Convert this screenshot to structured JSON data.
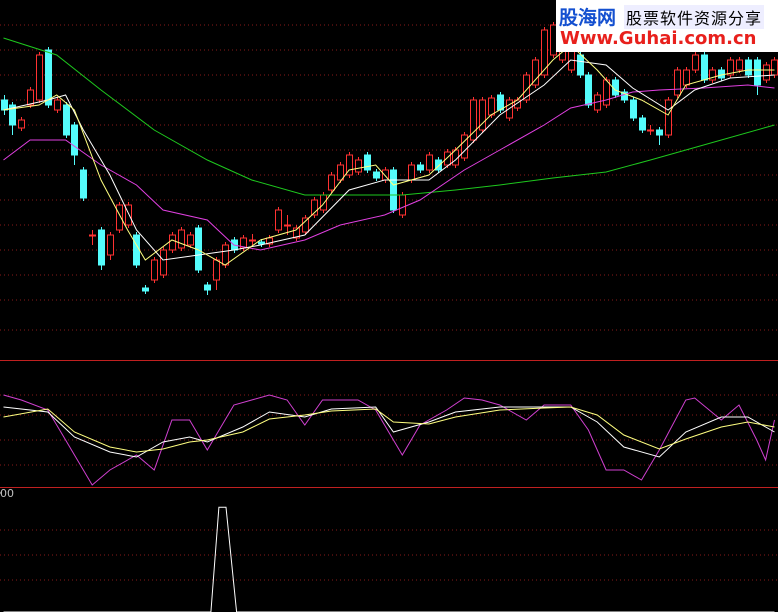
{
  "chart_data": [
    {
      "type": "candlestick",
      "xlim": [
        -0.4,
        87.4
      ],
      "ylim": [
        0,
        360
      ],
      "up_color": "#ff3232",
      "down_color": "#54fcfc",
      "candles": [
        [
          260,
          265,
          245,
          250
        ],
        [
          255,
          258,
          225,
          235
        ],
        [
          232,
          243,
          229,
          240
        ],
        [
          255,
          273,
          252,
          270
        ],
        [
          260,
          308,
          257,
          305
        ],
        [
          310,
          313,
          252,
          255
        ],
        [
          250,
          263,
          247,
          260
        ],
        [
          255,
          258,
          222,
          225
        ],
        [
          235,
          238,
          195,
          205
        ],
        [
          190,
          193,
          159,
          162
        ],
        [
          125,
          130,
          115,
          125
        ],
        [
          130,
          133,
          90,
          95
        ],
        [
          105,
          128,
          100,
          125
        ],
        [
          130,
          158,
          127,
          155
        ],
        [
          135,
          158,
          132,
          155
        ],
        [
          125,
          128,
          92,
          95
        ],
        [
          72,
          75,
          66,
          69
        ],
        [
          80,
          103,
          77,
          100
        ],
        [
          85,
          113,
          82,
          110
        ],
        [
          110,
          128,
          107,
          125
        ],
        [
          112,
          133,
          109,
          130
        ],
        [
          115,
          128,
          112,
          125
        ],
        [
          132,
          135,
          87,
          90
        ],
        [
          75,
          78,
          65,
          70
        ],
        [
          80,
          103,
          70,
          100
        ],
        [
          95,
          118,
          92,
          115
        ],
        [
          120,
          123,
          107,
          110
        ],
        [
          112,
          125,
          109,
          122
        ],
        [
          120,
          126,
          114,
          120
        ],
        [
          118,
          121,
          113,
          116
        ],
        [
          116,
          125,
          113,
          122
        ],
        [
          130,
          153,
          127,
          150
        ],
        [
          135,
          145,
          125,
          135
        ],
        [
          122,
          135,
          119,
          132
        ],
        [
          128,
          145,
          125,
          142
        ],
        [
          145,
          163,
          142,
          160
        ],
        [
          150,
          168,
          147,
          165
        ],
        [
          170,
          188,
          167,
          185
        ],
        [
          180,
          198,
          177,
          195
        ],
        [
          185,
          208,
          182,
          205
        ],
        [
          188,
          203,
          185,
          200
        ],
        [
          205,
          208,
          187,
          190
        ],
        [
          188,
          191,
          179,
          182
        ],
        [
          180,
          193,
          177,
          190
        ],
        [
          190,
          193,
          147,
          150
        ],
        [
          145,
          168,
          142,
          165
        ],
        [
          180,
          198,
          177,
          195
        ],
        [
          195,
          198,
          187,
          190
        ],
        [
          190,
          208,
          187,
          205
        ],
        [
          200,
          203,
          187,
          190
        ],
        [
          195,
          211,
          192,
          208
        ],
        [
          195,
          213,
          192,
          210
        ],
        [
          202,
          228,
          199,
          225
        ],
        [
          220,
          263,
          217,
          260
        ],
        [
          230,
          263,
          227,
          260
        ],
        [
          245,
          265,
          242,
          262
        ],
        [
          265,
          268,
          247,
          250
        ],
        [
          242,
          263,
          239,
          260
        ],
        [
          252,
          263,
          249,
          260
        ],
        [
          260,
          288,
          257,
          285
        ],
        [
          275,
          303,
          272,
          300
        ],
        [
          285,
          333,
          282,
          330
        ],
        [
          305,
          338,
          302,
          335
        ],
        [
          300,
          328,
          297,
          325
        ],
        [
          290,
          323,
          287,
          320
        ],
        [
          305,
          308,
          282,
          285
        ],
        [
          285,
          288,
          252,
          255
        ],
        [
          250,
          268,
          247,
          265
        ],
        [
          255,
          283,
          252,
          280
        ],
        [
          280,
          283,
          262,
          265
        ],
        [
          268,
          271,
          257,
          260
        ],
        [
          260,
          263,
          239,
          242
        ],
        [
          242,
          245,
          227,
          230
        ],
        [
          230,
          235,
          225,
          230
        ],
        [
          230,
          233,
          215,
          225
        ],
        [
          225,
          263,
          222,
          260
        ],
        [
          265,
          293,
          262,
          290
        ],
        [
          275,
          293,
          272,
          290
        ],
        [
          290,
          308,
          287,
          305
        ],
        [
          305,
          308,
          277,
          280
        ],
        [
          280,
          293,
          277,
          290
        ],
        [
          290,
          293,
          279,
          282
        ],
        [
          285,
          303,
          282,
          300
        ],
        [
          290,
          303,
          287,
          300
        ],
        [
          300,
          303,
          282,
          285
        ],
        [
          300,
          303,
          265,
          275
        ],
        [
          280,
          298,
          277,
          295
        ],
        [
          285,
          303,
          282,
          300
        ]
      ],
      "series": [
        {
          "color": "#1ec81e",
          "x": [
            0,
            6,
            11,
            17,
            23,
            28,
            34,
            40,
            45,
            51,
            56,
            62,
            68,
            73,
            79,
            87
          ],
          "values": [
            322,
            305,
            270,
            230,
            200,
            180,
            165,
            165,
            165,
            170,
            175,
            182,
            188,
            200,
            215,
            235
          ]
        },
        {
          "color": "#e040e0",
          "x": [
            0,
            3,
            7,
            11,
            15,
            18,
            23,
            26,
            29,
            34,
            38,
            43,
            47,
            52,
            56,
            61,
            64,
            68,
            71,
            74,
            79,
            84,
            87
          ],
          "values": [
            200,
            220,
            220,
            195,
            175,
            150,
            140,
            115,
            110,
            120,
            135,
            145,
            160,
            190,
            210,
            235,
            252,
            260,
            268,
            270,
            272,
            275,
            272
          ]
        },
        {
          "color": "#ffffff",
          "x": [
            0,
            5,
            7,
            9,
            12,
            15,
            18,
            22,
            26,
            29,
            34,
            39,
            43,
            48,
            51,
            56,
            61,
            64,
            68,
            71,
            75,
            78,
            82,
            87
          ],
          "values": [
            250,
            260,
            265,
            230,
            185,
            130,
            100,
            105,
            110,
            115,
            125,
            170,
            180,
            180,
            200,
            245,
            275,
            300,
            295,
            272,
            250,
            270,
            282,
            285
          ]
        },
        {
          "color": "#ffff80",
          "x": [
            0,
            4,
            6,
            8,
            11,
            14,
            16,
            19,
            22,
            25,
            29,
            33,
            36,
            39,
            42,
            44,
            48,
            51,
            55,
            58,
            62,
            64,
            67,
            69,
            72,
            75,
            77,
            81,
            84,
            87
          ],
          "values": [
            250,
            255,
            265,
            250,
            180,
            130,
            100,
            120,
            110,
            95,
            120,
            130,
            155,
            190,
            195,
            175,
            185,
            210,
            245,
            260,
            300,
            315,
            290,
            270,
            260,
            245,
            275,
            285,
            290,
            290
          ]
        }
      ]
    },
    {
      "type": "line",
      "xlim": [
        -0.4,
        87.4
      ],
      "ylim": [
        0,
        127
      ],
      "series": [
        {
          "color": "#d040d0",
          "x": [
            0,
            2,
            5,
            7,
            10,
            12,
            15,
            17,
            19,
            21,
            23,
            26,
            28,
            30,
            32,
            34,
            36,
            40,
            42,
            45,
            47,
            50,
            52,
            54,
            56,
            59,
            61,
            64,
            66,
            68,
            70,
            72,
            74,
            77,
            78,
            81,
            83,
            85,
            86,
            87
          ],
          "values": [
            92,
            87,
            77,
            47,
            2,
            17,
            32,
            17,
            67,
            67,
            37,
            82,
            87,
            92,
            87,
            62,
            87,
            87,
            77,
            32,
            62,
            77,
            89,
            87,
            82,
            67,
            82,
            82,
            57,
            17,
            17,
            7,
            37,
            87,
            89,
            67,
            82,
            47,
            27,
            67
          ]
        },
        {
          "color": "#ffffff",
          "x": [
            0,
            5,
            8,
            12,
            15,
            18,
            21,
            23,
            27,
            30,
            34,
            37,
            42,
            44,
            48,
            51,
            56,
            61,
            64,
            67,
            70,
            74,
            77,
            81,
            84,
            87
          ],
          "values": [
            80,
            75,
            50,
            35,
            30,
            45,
            50,
            45,
            60,
            75,
            70,
            78,
            80,
            55,
            65,
            75,
            80,
            80,
            80,
            65,
            40,
            30,
            55,
            70,
            70,
            55
          ]
        },
        {
          "color": "#ffff80",
          "x": [
            0,
            5,
            8,
            12,
            15,
            18,
            21,
            23,
            27,
            30,
            34,
            37,
            42,
            44,
            48,
            51,
            56,
            61,
            64,
            67,
            70,
            74,
            77,
            81,
            84,
            87
          ],
          "values": [
            70,
            78,
            55,
            40,
            35,
            38,
            45,
            47,
            55,
            68,
            72,
            76,
            78,
            65,
            63,
            70,
            77,
            79,
            80,
            72,
            52,
            38,
            48,
            60,
            65,
            60
          ]
        }
      ]
    },
    {
      "type": "line",
      "xlim": [
        -0.4,
        87.4
      ],
      "ylim": [
        0,
        105
      ],
      "yticks": [
        {
          "value": 100,
          "label": "00"
        }
      ],
      "series": [
        {
          "color": "#ffffff",
          "x": [
            0,
            23.4,
            24.3,
            25.1,
            26.3,
            87
          ],
          "values": [
            0,
            0,
            88,
            88,
            0,
            0
          ]
        }
      ]
    }
  ],
  "watermark": {
    "site": "股海网",
    "slogan": "股票软件资源分享",
    "url": "Www.Guhai.com.cn"
  }
}
